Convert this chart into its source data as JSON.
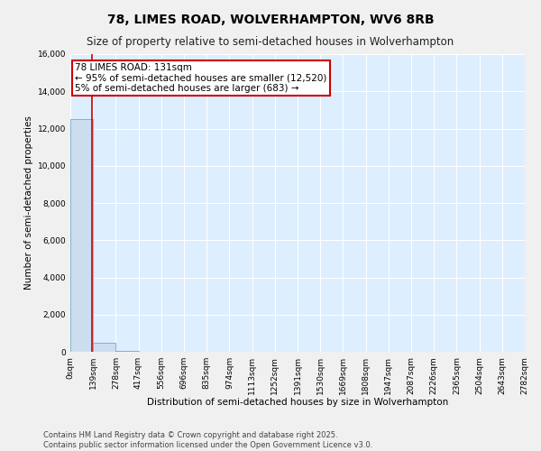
{
  "title": "78, LIMES ROAD, WOLVERHAMPTON, WV6 8RB",
  "subtitle": "Size of property relative to semi-detached houses in Wolverhampton",
  "xlabel": "Distribution of semi-detached houses by size in Wolverhampton",
  "ylabel": "Number of semi-detached properties",
  "annotation_line1": "78 LIMES ROAD: 131sqm",
  "annotation_line2": "← 95% of semi-detached houses are smaller (12,520)",
  "annotation_line3": "5% of semi-detached houses are larger (683) →",
  "bar_edges": [
    0,
    139,
    278,
    417,
    556,
    696,
    835,
    974,
    1113,
    1252,
    1391,
    1530,
    1669,
    1808,
    1947,
    2087,
    2226,
    2365,
    2504,
    2643,
    2782
  ],
  "bar_heights": [
    12520,
    500,
    50,
    20,
    10,
    5,
    3,
    2,
    1,
    1,
    1,
    0,
    0,
    0,
    0,
    0,
    0,
    0,
    0,
    0
  ],
  "bar_color": "#ccddf0",
  "bar_edge_color": "#6699bb",
  "vline_color": "#cc0000",
  "vline_x": 131,
  "box_color": "#cc0000",
  "background_color": "#ddeeff",
  "grid_color": "#ffffff",
  "fig_background": "#f0f0f0",
  "ylim": [
    0,
    16000
  ],
  "xlim": [
    0,
    2782
  ],
  "yticks": [
    0,
    2000,
    4000,
    6000,
    8000,
    10000,
    12000,
    14000,
    16000
  ],
  "xtick_labels": [
    "0sqm",
    "139sqm",
    "278sqm",
    "417sqm",
    "556sqm",
    "696sqm",
    "835sqm",
    "974sqm",
    "1113sqm",
    "1252sqm",
    "1391sqm",
    "1530sqm",
    "1669sqm",
    "1808sqm",
    "1947sqm",
    "2087sqm",
    "2226sqm",
    "2365sqm",
    "2504sqm",
    "2643sqm",
    "2782sqm"
  ],
  "footer_line1": "Contains HM Land Registry data © Crown copyright and database right 2025.",
  "footer_line2": "Contains public sector information licensed under the Open Government Licence v3.0.",
  "title_fontsize": 10,
  "subtitle_fontsize": 8.5,
  "axis_label_fontsize": 7.5,
  "tick_fontsize": 6.5,
  "annotation_fontsize": 7.5,
  "footer_fontsize": 6
}
